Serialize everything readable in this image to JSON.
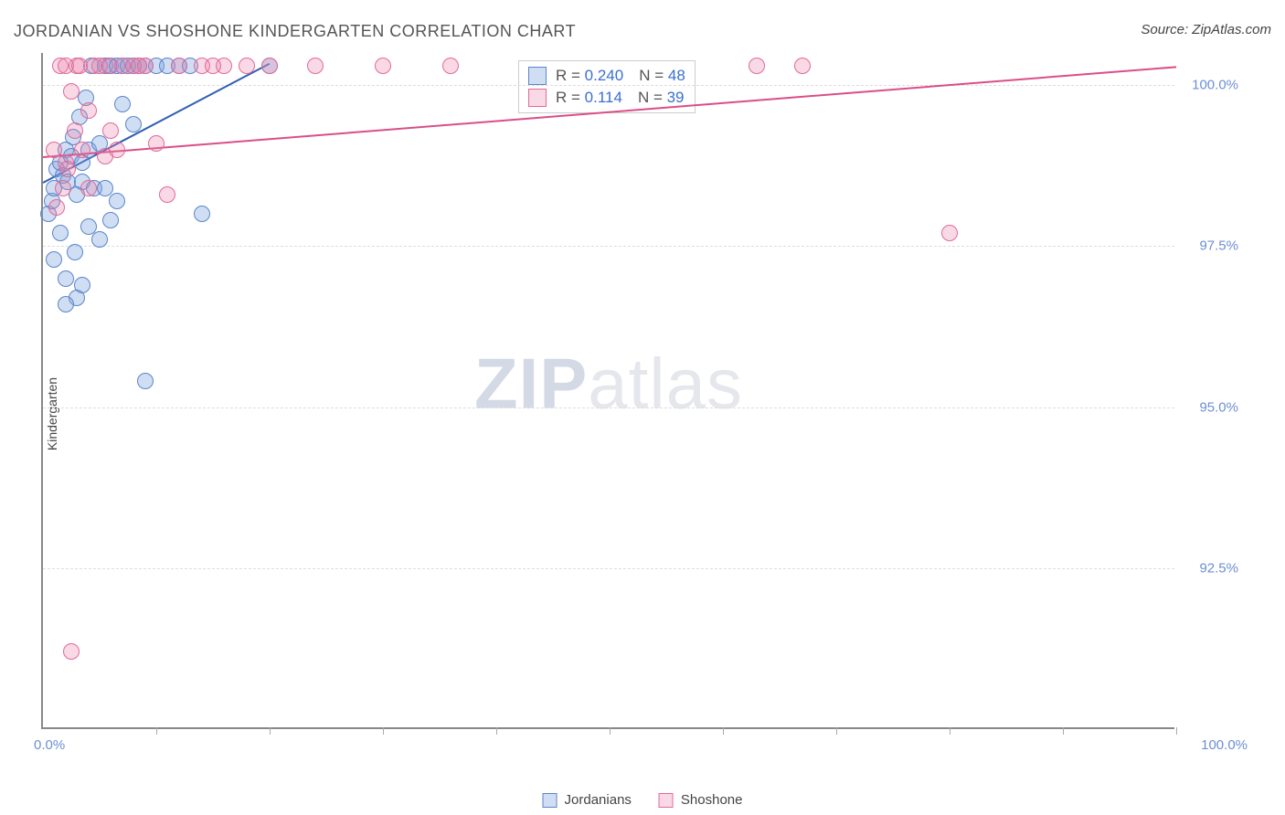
{
  "title": "JORDANIAN VS SHOSHONE KINDERGARTEN CORRELATION CHART",
  "source_prefix": "Source: ",
  "source_name": "ZipAtlas.com",
  "y_axis_label": "Kindergarten",
  "watermark_strong": "ZIP",
  "watermark_light": "atlas",
  "chart": {
    "type": "scatter",
    "xlim": [
      0,
      100
    ],
    "ylim": [
      90,
      100.5
    ],
    "background_color": "#ffffff",
    "grid_color": "#dddddd",
    "y_ticks": [
      {
        "val": 100.0,
        "label": "100.0%"
      },
      {
        "val": 97.5,
        "label": "97.5%"
      },
      {
        "val": 95.0,
        "label": "95.0%"
      },
      {
        "val": 92.5,
        "label": "92.5%"
      }
    ],
    "x_tick_positions": [
      10,
      20,
      30,
      40,
      50,
      60,
      70,
      80,
      90,
      100
    ],
    "x_min_label": "0.0%",
    "x_max_label": "100.0%",
    "tick_label_color": "#6b8fd6",
    "marker_radius": 9,
    "series": [
      {
        "name": "Jordanians",
        "color_fill": "rgba(120,160,220,0.35)",
        "color_stroke": "#5b85c9",
        "trend_color": "#2f5fb3",
        "r_value": "0.240",
        "n_value": "48",
        "trend": {
          "x1": 0,
          "y1": 98.5,
          "x2": 20,
          "y2": 100.35
        },
        "points": [
          [
            0.5,
            98.0
          ],
          [
            0.8,
            98.2
          ],
          [
            1.0,
            98.4
          ],
          [
            1.2,
            98.7
          ],
          [
            1.5,
            98.8
          ],
          [
            1.8,
            98.6
          ],
          [
            2.0,
            99.0
          ],
          [
            2.2,
            98.5
          ],
          [
            2.5,
            98.9
          ],
          [
            2.7,
            99.2
          ],
          [
            3.0,
            98.3
          ],
          [
            3.2,
            99.5
          ],
          [
            3.5,
            98.8
          ],
          [
            3.8,
            99.8
          ],
          [
            4.0,
            99.0
          ],
          [
            4.3,
            100.3
          ],
          [
            5.0,
            99.1
          ],
          [
            5.5,
            100.3
          ],
          [
            6.0,
            100.3
          ],
          [
            6.5,
            100.3
          ],
          [
            7.0,
            100.3
          ],
          [
            7.5,
            100.3
          ],
          [
            8.0,
            99.4
          ],
          [
            8.5,
            100.3
          ],
          [
            9.0,
            100.3
          ],
          [
            10.0,
            100.3
          ],
          [
            11.0,
            100.3
          ],
          [
            12.0,
            100.3
          ],
          [
            13.0,
            100.3
          ],
          [
            14.0,
            98.0
          ],
          [
            20.0,
            100.3
          ],
          [
            1.0,
            97.3
          ],
          [
            2.0,
            97.0
          ],
          [
            3.0,
            96.7
          ],
          [
            2.0,
            96.6
          ],
          [
            3.5,
            96.9
          ],
          [
            5.0,
            97.6
          ],
          [
            1.5,
            97.7
          ],
          [
            2.8,
            97.4
          ],
          [
            3.5,
            98.5
          ],
          [
            4.5,
            98.4
          ],
          [
            6.0,
            97.9
          ],
          [
            9.0,
            95.4
          ],
          [
            8.0,
            100.3
          ],
          [
            5.5,
            98.4
          ],
          [
            6.5,
            98.2
          ],
          [
            7.0,
            99.7
          ],
          [
            4.0,
            97.8
          ]
        ]
      },
      {
        "name": "Shoshone",
        "color_fill": "rgba(235,130,170,0.30)",
        "color_stroke": "#e06a9a",
        "trend_color": "#d94f87",
        "r_value": "0.114",
        "n_value": "39",
        "trend": {
          "x1": 0,
          "y1": 98.9,
          "x2": 100,
          "y2": 100.3
        },
        "points": [
          [
            1.0,
            99.0
          ],
          [
            1.5,
            100.3
          ],
          [
            2.0,
            98.8
          ],
          [
            3.0,
            100.3
          ],
          [
            4.0,
            99.6
          ],
          [
            5.0,
            100.3
          ],
          [
            6.0,
            99.3
          ],
          [
            7.0,
            100.3
          ],
          [
            8.0,
            100.3
          ],
          [
            10.0,
            99.1
          ],
          [
            12.0,
            100.3
          ],
          [
            14.0,
            100.3
          ],
          [
            16.0,
            100.3
          ],
          [
            18.0,
            100.3
          ],
          [
            20.0,
            100.3
          ],
          [
            24.0,
            100.3
          ],
          [
            30.0,
            100.3
          ],
          [
            36.0,
            100.3
          ],
          [
            11.0,
            98.3
          ],
          [
            5.5,
            98.9
          ],
          [
            3.5,
            99.0
          ],
          [
            4.5,
            100.3
          ],
          [
            2.5,
            99.9
          ],
          [
            2.0,
            100.3
          ],
          [
            63.0,
            100.3
          ],
          [
            67.0,
            100.3
          ],
          [
            80.0,
            97.7
          ],
          [
            2.5,
            91.2
          ],
          [
            1.2,
            98.1
          ],
          [
            1.8,
            98.4
          ],
          [
            2.2,
            98.7
          ],
          [
            2.8,
            99.3
          ],
          [
            3.2,
            100.3
          ],
          [
            5.8,
            100.3
          ],
          [
            9.0,
            100.3
          ],
          [
            6.5,
            99.0
          ],
          [
            8.5,
            100.3
          ],
          [
            15.0,
            100.3
          ],
          [
            4.0,
            98.4
          ]
        ]
      }
    ]
  },
  "legend": {
    "r_prefix": "R = ",
    "n_prefix": "N = "
  }
}
